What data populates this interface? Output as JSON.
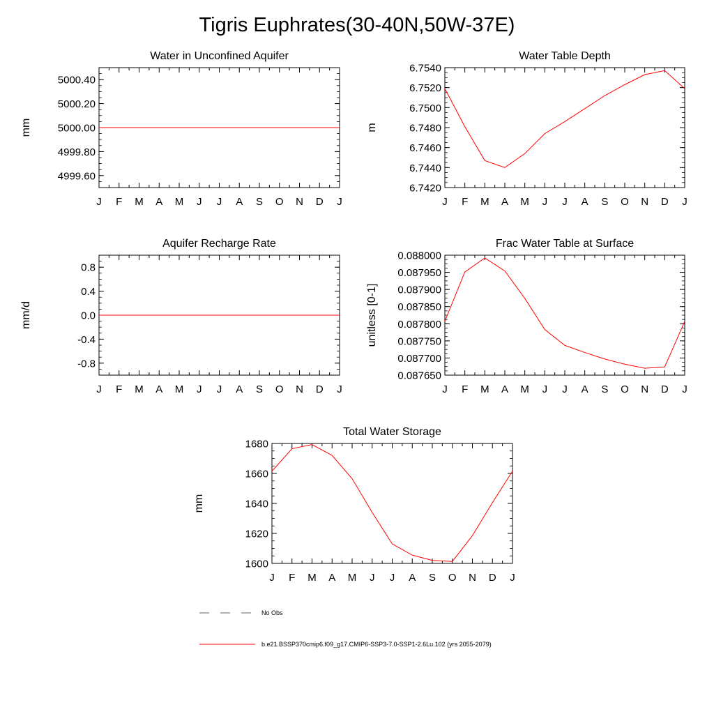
{
  "title": "Tigris Euphrates(30-40N,50W-37E)",
  "colors": {
    "model": "#ff0000",
    "obs": "#808080",
    "axis": "#000000"
  },
  "months": [
    "J",
    "F",
    "M",
    "A",
    "M",
    "J",
    "J",
    "A",
    "S",
    "O",
    "N",
    "D",
    "J"
  ],
  "legend": {
    "obs_label": "No Obs",
    "model_label": "b.e21.BSSP370cmip6.f09_g17.CMIP6-SSP3-7.0-SSP1-2.6Lu.102 (yrs 2055-2079)"
  },
  "chart_data": [
    {
      "type": "line",
      "title": "Water in Unconfined Aquifer",
      "ylabel": "mm",
      "ylim": [
        4999.5,
        5000.5
      ],
      "yticks": [
        4999.6,
        4999.8,
        5000.0,
        5000.2,
        5000.4
      ],
      "ytick_labels": [
        "4999.60",
        "4999.80",
        "5000.00",
        "5000.20",
        "5000.40"
      ],
      "x": [
        "J",
        "F",
        "M",
        "A",
        "M",
        "J",
        "J",
        "A",
        "S",
        "O",
        "N",
        "D",
        "J"
      ],
      "series": [
        {
          "values": [
            5000.0,
            5000.0,
            5000.0,
            5000.0,
            5000.0,
            5000.0,
            5000.0,
            5000.0,
            5000.0,
            5000.0,
            5000.0,
            5000.0,
            5000.0
          ]
        }
      ]
    },
    {
      "type": "line",
      "title": "Water Table Depth",
      "ylabel": "m",
      "ylim": [
        6.742,
        6.754
      ],
      "yticks": [
        6.742,
        6.744,
        6.746,
        6.748,
        6.75,
        6.752,
        6.754
      ],
      "ytick_labels": [
        "6.7420",
        "6.7440",
        "6.7460",
        "6.7480",
        "6.7500",
        "6.7520",
        "6.7540"
      ],
      "x": [
        "J",
        "F",
        "M",
        "A",
        "M",
        "J",
        "J",
        "A",
        "S",
        "O",
        "N",
        "D",
        "J"
      ],
      "series": [
        {
          "values": [
            6.7519,
            6.7481,
            6.7447,
            6.744,
            6.7454,
            6.7474,
            6.7486,
            6.7499,
            6.7512,
            6.7523,
            6.7533,
            6.7537,
            6.7519
          ]
        }
      ]
    },
    {
      "type": "line",
      "title": "Aquifer Recharge Rate",
      "ylabel": "mm/d",
      "ylim": [
        -1.0,
        1.0
      ],
      "yticks": [
        -0.8,
        -0.4,
        0.0,
        0.4,
        0.8
      ],
      "ytick_labels": [
        "-0.8",
        "-0.4",
        "0.0",
        "0.4",
        "0.8"
      ],
      "x": [
        "J",
        "F",
        "M",
        "A",
        "M",
        "J",
        "J",
        "A",
        "S",
        "O",
        "N",
        "D",
        "J"
      ],
      "series": [
        {
          "values": [
            0,
            0,
            0,
            0,
            0,
            0,
            0,
            0,
            0,
            0,
            0,
            0,
            0
          ]
        }
      ]
    },
    {
      "type": "line",
      "title": "Frac Water Table at Surface",
      "ylabel": "unitless [0-1]",
      "ylim": [
        0.08765,
        0.088
      ],
      "yticks": [
        0.08765,
        0.0877,
        0.08775,
        0.0878,
        0.08785,
        0.0879,
        0.08795,
        0.088
      ],
      "ytick_labels": [
        "0.087650",
        "0.087700",
        "0.087750",
        "0.087800",
        "0.087850",
        "0.087900",
        "0.087950",
        "0.088000"
      ],
      "x": [
        "J",
        "F",
        "M",
        "A",
        "M",
        "J",
        "J",
        "A",
        "S",
        "O",
        "N",
        "D",
        "J"
      ],
      "series": [
        {
          "values": [
            0.087807,
            0.087951,
            0.087992,
            0.087954,
            0.087874,
            0.087783,
            0.087737,
            0.087716,
            0.087697,
            0.087682,
            0.08767,
            0.087674,
            0.087807
          ]
        }
      ]
    },
    {
      "type": "line",
      "title": "Total Water Storage",
      "ylabel": "mm",
      "ylim": [
        1600,
        1680
      ],
      "yticks": [
        1600,
        1620,
        1640,
        1660,
        1680
      ],
      "ytick_labels": [
        "1600",
        "1620",
        "1640",
        "1660",
        "1680"
      ],
      "x": [
        "J",
        "F",
        "M",
        "A",
        "M",
        "J",
        "J",
        "A",
        "S",
        "O",
        "N",
        "D",
        "J"
      ],
      "series": [
        {
          "values": [
            1661.5,
            1676.5,
            1679.3,
            1672.0,
            1656.5,
            1634.0,
            1613.0,
            1605.5,
            1602.0,
            1601.3,
            1618.5,
            1640.5,
            1661.5
          ]
        }
      ]
    }
  ]
}
